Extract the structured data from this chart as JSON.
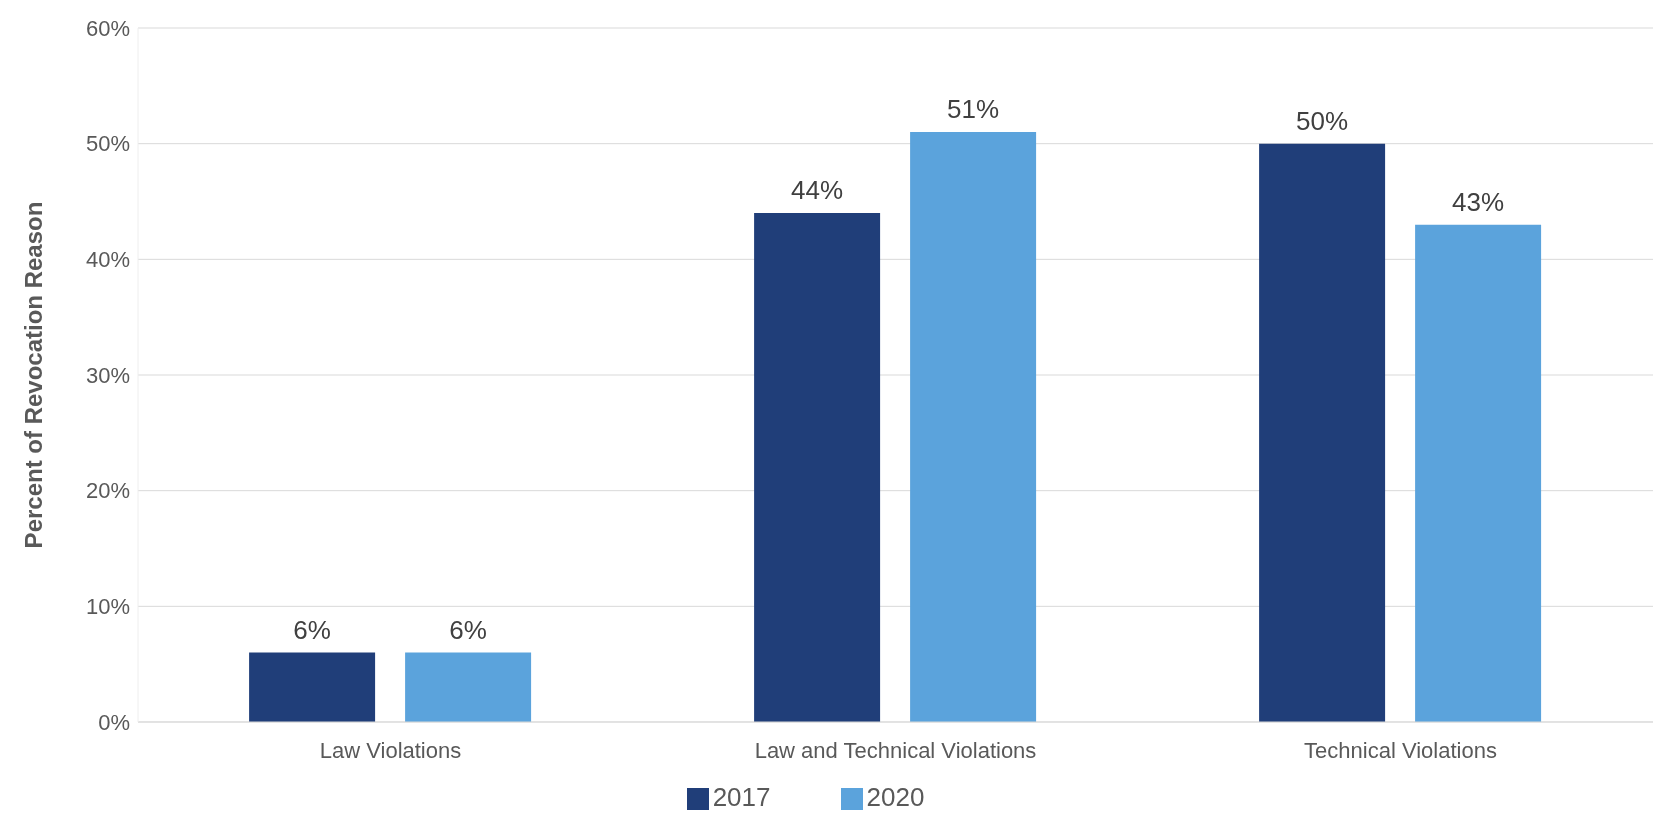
{
  "chart_data": {
    "type": "bar",
    "ylabel": "Percent of Revocation Reason",
    "categories": [
      "Law Violations",
      "Law and Technical Violations",
      "Technical Violations"
    ],
    "series": [
      {
        "name": "2017",
        "color": "#203e79",
        "values": [
          6,
          44,
          50
        ],
        "value_labels": [
          "6%",
          "44%",
          "50%"
        ]
      },
      {
        "name": "2020",
        "color": "#5ba3dc",
        "values": [
          6,
          51,
          43
        ],
        "value_labels": [
          "6%",
          "51%",
          "43%"
        ]
      }
    ],
    "ylim": [
      0,
      60
    ],
    "yticks": [
      {
        "value": 0,
        "label": "0%"
      },
      {
        "value": 10,
        "label": "10%"
      },
      {
        "value": 20,
        "label": "20%"
      },
      {
        "value": 30,
        "label": "30%"
      },
      {
        "value": 40,
        "label": "40%"
      },
      {
        "value": 50,
        "label": "50%"
      },
      {
        "value": 60,
        "label": "60%"
      }
    ],
    "grid": "y",
    "legend": "bottom"
  }
}
